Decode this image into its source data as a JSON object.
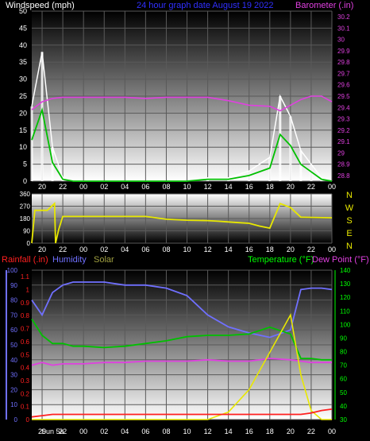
{
  "header": {
    "windspeed_label": "Windspeed (mph)",
    "title": "24 hour graph date   August 19 2022",
    "barometer_label": "Barometer (.in)"
  },
  "colors": {
    "windspeed": "#ffffff",
    "wind_avg": "#00c000",
    "barometer": "#e040e0",
    "direction": "#e8e800",
    "rainfall": "#ff2020",
    "humidity": "#7070ff",
    "solar": "#e8e800",
    "temperature": "#00c000",
    "dewpoint": "#e040e0",
    "grid_text": "#ffffff",
    "bottom_right_axis": "#00ff00",
    "title_blue": "#3030ff"
  },
  "time_ticks": [
    "20",
    "22",
    "00",
    "02",
    "04",
    "06",
    "08",
    "10",
    "12",
    "14",
    "16",
    "18",
    "20",
    "22",
    "00"
  ],
  "bottom_time_ticks": [
    "Sun 5a",
    "20",
    "22",
    "00",
    "02",
    "04",
    "06",
    "08",
    "10",
    "12",
    "14",
    "16",
    "18",
    "20",
    "22",
    "00"
  ],
  "panel1": {
    "left_ticks": [
      "0",
      "5",
      "10",
      "15",
      "20",
      "25",
      "30",
      "35",
      "40",
      "45",
      "50"
    ],
    "right_ticks": [
      "28.8",
      "28.9",
      "29",
      "29.1",
      "29.2",
      "29.3",
      "29.4",
      "29.5",
      "29.6",
      "29.7",
      "29.8",
      "29.9",
      "30",
      "30.1",
      "30.2"
    ]
  },
  "panel2": {
    "left_ticks": [
      "0",
      "90",
      "180",
      "270",
      "360"
    ],
    "compass": [
      "N",
      "W",
      "S",
      "E",
      "N"
    ]
  },
  "panel3": {
    "rain_label": "Rainfall (.in)",
    "humidity_label": "Humidity",
    "solar_label": "Solar",
    "temp_label": "Temperature (°F)",
    "dew_label": "Dew Point (°F)",
    "humidity_ticks": [
      "0",
      "10",
      "20",
      "30",
      "40",
      "50",
      "60",
      "70",
      "80",
      "90",
      "100"
    ],
    "rain_ticks": [
      "0",
      "0.1",
      "0.2",
      "0.3",
      "0.4",
      "0.5",
      "0.6",
      "0.7",
      "0.8",
      "0.9",
      "1",
      "1.1"
    ],
    "temp_ticks": [
      "30",
      "40",
      "50",
      "60",
      "70",
      "80",
      "90",
      "100",
      "110",
      "120",
      "130",
      "140"
    ]
  },
  "chart_data": [
    {
      "type": "line",
      "title": "24 hour graph date   August 19 2022",
      "ylabel": "Windspeed (mph)",
      "y2label": "Barometer (.in)",
      "ylim": [
        0,
        50
      ],
      "y2lim": [
        28.75,
        30.25
      ],
      "x_hours": [
        19,
        20,
        21,
        22,
        23,
        24,
        26,
        28,
        30,
        32,
        34,
        36,
        38,
        40,
        42,
        43,
        44,
        45,
        46,
        47,
        48
      ],
      "series": [
        {
          "name": "Windspeed (mph)",
          "values": [
            22,
            38,
            10,
            1,
            0,
            0,
            0,
            0,
            0,
            0,
            0,
            1,
            1,
            3,
            7,
            25,
            19,
            9,
            5,
            1,
            0
          ]
        },
        {
          "name": "Barometer (.in)",
          "values": [
            29.38,
            29.45,
            29.48,
            29.49,
            29.49,
            29.49,
            29.49,
            29.49,
            29.48,
            29.49,
            29.49,
            29.49,
            29.46,
            29.42,
            29.41,
            29.37,
            29.42,
            29.47,
            29.5,
            29.5,
            29.45
          ]
        }
      ]
    },
    {
      "type": "line",
      "title": "",
      "ylabel": "",
      "ylim": [
        0,
        360
      ],
      "x_hours": [
        19,
        19.3,
        20.5,
        21.2,
        21.3,
        21.6,
        22,
        23,
        26,
        30,
        31.5,
        32,
        34,
        36,
        37,
        38,
        39,
        40,
        41,
        42,
        43,
        44,
        45,
        48
      ],
      "series": [
        {
          "name": "",
          "values": [
            0,
            240,
            240,
            290,
            0,
            100,
            195,
            195,
            195,
            195,
            180,
            175,
            168,
            165,
            160,
            155,
            150,
            145,
            125,
            110,
            290,
            260,
            190,
            185
          ]
        }
      ]
    },
    {
      "type": "line",
      "title": "",
      "ylabel": "Humidity",
      "y2label": "Temperature (°F)",
      "ylim": [
        0,
        100
      ],
      "y2lim": [
        30,
        140
      ],
      "x_hours": [
        19,
        20,
        21,
        22,
        23,
        24,
        26,
        28,
        30,
        32,
        34,
        36,
        38,
        40,
        42,
        44,
        45,
        46,
        47,
        48
      ],
      "series": [
        {
          "name": "Humidity",
          "values": [
            80,
            70,
            85,
            90,
            92,
            92,
            92,
            90,
            90,
            88,
            83,
            70,
            62,
            58,
            55,
            60,
            87,
            88,
            88,
            87
          ]
        },
        {
          "name": "Temperature (°F)",
          "values": [
            104,
            92,
            86,
            86,
            84,
            84,
            83,
            84,
            86,
            88,
            91,
            92,
            92,
            93,
            98,
            93,
            75,
            75,
            74,
            74
          ]
        },
        {
          "name": "Dew Point (°F)",
          "values": [
            70,
            72,
            70,
            71,
            71,
            71,
            72,
            72,
            73,
            73,
            73,
            74,
            73,
            73,
            75,
            74,
            73,
            72,
            72,
            72
          ]
        },
        {
          "name": "Solar",
          "values": [
            0,
            0,
            0,
            0,
            0,
            0,
            0,
            0,
            0,
            0,
            0,
            0,
            5,
            20,
            45,
            70,
            30,
            6,
            0,
            0
          ]
        },
        {
          "name": "Rainfall (.in)",
          "values": [
            0.02,
            0.03,
            0.04,
            0.04,
            0.04,
            0.04,
            0.04,
            0.04,
            0.04,
            0.04,
            0.04,
            0.04,
            0.04,
            0.04,
            0.04,
            0.04,
            0.04,
            0.05,
            0.07,
            0.08
          ]
        }
      ]
    }
  ]
}
